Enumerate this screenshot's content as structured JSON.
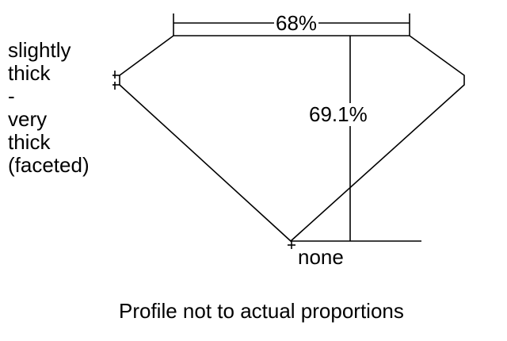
{
  "girdle_label": [
    "slightly",
    "thick",
    "-",
    "very",
    "thick",
    "(faceted)"
  ],
  "table_percent": "68%",
  "total_depth_percent": "69.1%",
  "culet_label": "none",
  "note": "Profile not to actual proportions",
  "line_color": "#000000"
}
